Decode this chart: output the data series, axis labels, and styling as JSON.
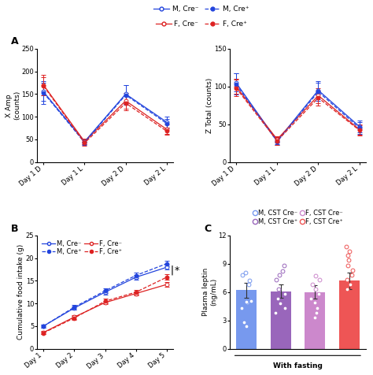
{
  "panel_A_left": {
    "xlabel_ticks": [
      "Day 1 D",
      "Day 1 L",
      "Day 2 D",
      "Day 2 L"
    ],
    "ylabel": "X Amp\n(counts)",
    "ylim": [
      0,
      250
    ],
    "yticks": [
      0,
      50,
      100,
      150,
      200,
      250
    ],
    "series": [
      {
        "y": [
          155,
          45,
          150,
          88
        ],
        "yerr": [
          20,
          5,
          20,
          12
        ],
        "color": "#2244DD",
        "ls": "-",
        "mfc": "white"
      },
      {
        "y": [
          170,
          45,
          135,
          72
        ],
        "yerr": [
          22,
          6,
          18,
          10
        ],
        "color": "#DD2222",
        "ls": "-",
        "mfc": "white"
      },
      {
        "y": [
          153,
          43,
          148,
          85
        ],
        "yerr": [
          25,
          5,
          22,
          10
        ],
        "color": "#2244DD",
        "ls": "--",
        "mfc": "#2244DD"
      },
      {
        "y": [
          168,
          42,
          130,
          68
        ],
        "yerr": [
          20,
          6,
          16,
          8
        ],
        "color": "#DD2222",
        "ls": "--",
        "mfc": "#DD2222"
      }
    ]
  },
  "panel_A_right": {
    "xlabel_ticks": [
      "Day 1 D",
      "Day 1 L",
      "Day 2 D",
      "Day 2 L"
    ],
    "ylabel": "Z Total (counts)",
    "ylim": [
      0,
      150
    ],
    "yticks": [
      0,
      50,
      100,
      150
    ],
    "series": [
      {
        "y": [
          105,
          28,
          95,
          47
        ],
        "yerr": [
          12,
          4,
          12,
          8
        ],
        "color": "#2244DD",
        "ls": "-",
        "mfc": "white"
      },
      {
        "y": [
          100,
          30,
          88,
          43
        ],
        "yerr": [
          10,
          4,
          10,
          7
        ],
        "color": "#DD2222",
        "ls": "-",
        "mfc": "white"
      },
      {
        "y": [
          103,
          27,
          93,
          45
        ],
        "yerr": [
          14,
          4,
          12,
          8
        ],
        "color": "#2244DD",
        "ls": "--",
        "mfc": "#2244DD"
      },
      {
        "y": [
          98,
          28,
          85,
          42
        ],
        "yerr": [
          11,
          5,
          10,
          7
        ],
        "color": "#DD2222",
        "ls": "--",
        "mfc": "#DD2222"
      }
    ]
  },
  "panel_B": {
    "xlabel_ticks": [
      "Day 1",
      "Day 2",
      "Day 3",
      "Day 4",
      "Day 5"
    ],
    "ylabel": "Cumulative food intake (g)",
    "ylim": [
      0,
      25
    ],
    "yticks": [
      0,
      5,
      10,
      15,
      20,
      25
    ],
    "series": [
      {
        "y": [
          5.0,
          9.0,
          12.5,
          15.8,
          18.0
        ],
        "yerr": [
          0.3,
          0.4,
          0.5,
          0.5,
          0.5
        ],
        "color": "#2244DD",
        "ls": "-",
        "mfc": "white",
        "label": "M, Cre⁻"
      },
      {
        "y": [
          3.6,
          7.0,
          10.2,
          12.2,
          14.2
        ],
        "yerr": [
          0.3,
          0.4,
          0.4,
          0.5,
          0.5
        ],
        "color": "#DD2222",
        "ls": "-",
        "mfc": "white",
        "label": "F, Cre⁻"
      },
      {
        "y": [
          5.0,
          9.2,
          12.8,
          16.2,
          18.8
        ],
        "yerr": [
          0.3,
          0.5,
          0.5,
          0.6,
          0.6
        ],
        "color": "#2244DD",
        "ls": "--",
        "mfc": "#2244DD",
        "label": "M, Cre⁺"
      },
      {
        "y": [
          3.5,
          6.8,
          10.5,
          12.5,
          15.8
        ],
        "yerr": [
          0.3,
          0.4,
          0.5,
          0.5,
          0.6
        ],
        "color": "#DD2222",
        "ls": "--",
        "mfc": "#DD2222",
        "label": "F, Cre⁺"
      }
    ]
  },
  "panel_C": {
    "ylabel": "Plasma leptin\n(ng/mL)",
    "ylim": [
      0,
      12
    ],
    "yticks": [
      0,
      3,
      6,
      9,
      12
    ],
    "xlabel": "With fasting",
    "bar_colors": [
      "#7799EE",
      "#9966BB",
      "#CC88CC",
      "#EE5555"
    ],
    "bar_values": [
      6.2,
      6.1,
      6.0,
      7.2
    ],
    "bar_errors": [
      0.8,
      0.7,
      0.7,
      0.9
    ],
    "scatter_data": [
      [
        7.8,
        7.2,
        8.1,
        6.8,
        5.1,
        4.9,
        5.0,
        4.3,
        2.8,
        2.4
      ],
      [
        8.2,
        8.8,
        7.8,
        7.3,
        6.3,
        5.8,
        5.3,
        4.8,
        4.3,
        3.8
      ],
      [
        7.7,
        7.3,
        6.8,
        6.3,
        5.8,
        5.3,
        4.9,
        4.3,
        3.8,
        3.3
      ],
      [
        10.8,
        10.3,
        9.9,
        9.4,
        8.8,
        8.3,
        7.8,
        7.3,
        6.8,
        6.3
      ]
    ],
    "scatter_colors": [
      "#7799EE",
      "#9966BB",
      "#CC88CC",
      "#EE5555"
    ],
    "legend_labels": [
      "M, CST Cre⁻",
      "M, CST Cre⁺",
      "F, CST Cre⁻",
      "F, CST Cre⁺"
    ],
    "legend_colors": [
      "#7799EE",
      "#9966BB",
      "#CC88CC",
      "#EE5555"
    ]
  },
  "legend_A_entries": [
    {
      "label": "M, Cre⁻",
      "color": "#2244DD",
      "ls": "-",
      "mfc": "white"
    },
    {
      "label": "M, Cre⁺",
      "color": "#2244DD",
      "ls": "--",
      "mfc": "#2244DD"
    },
    {
      "label": "F, Cre⁻",
      "color": "#DD2222",
      "ls": "-",
      "mfc": "white"
    },
    {
      "label": "F, Cre⁺",
      "color": "#DD2222",
      "ls": "--",
      "mfc": "#DD2222"
    }
  ],
  "bg": "#ffffff",
  "fs": 6.5,
  "tfs": 6.0
}
